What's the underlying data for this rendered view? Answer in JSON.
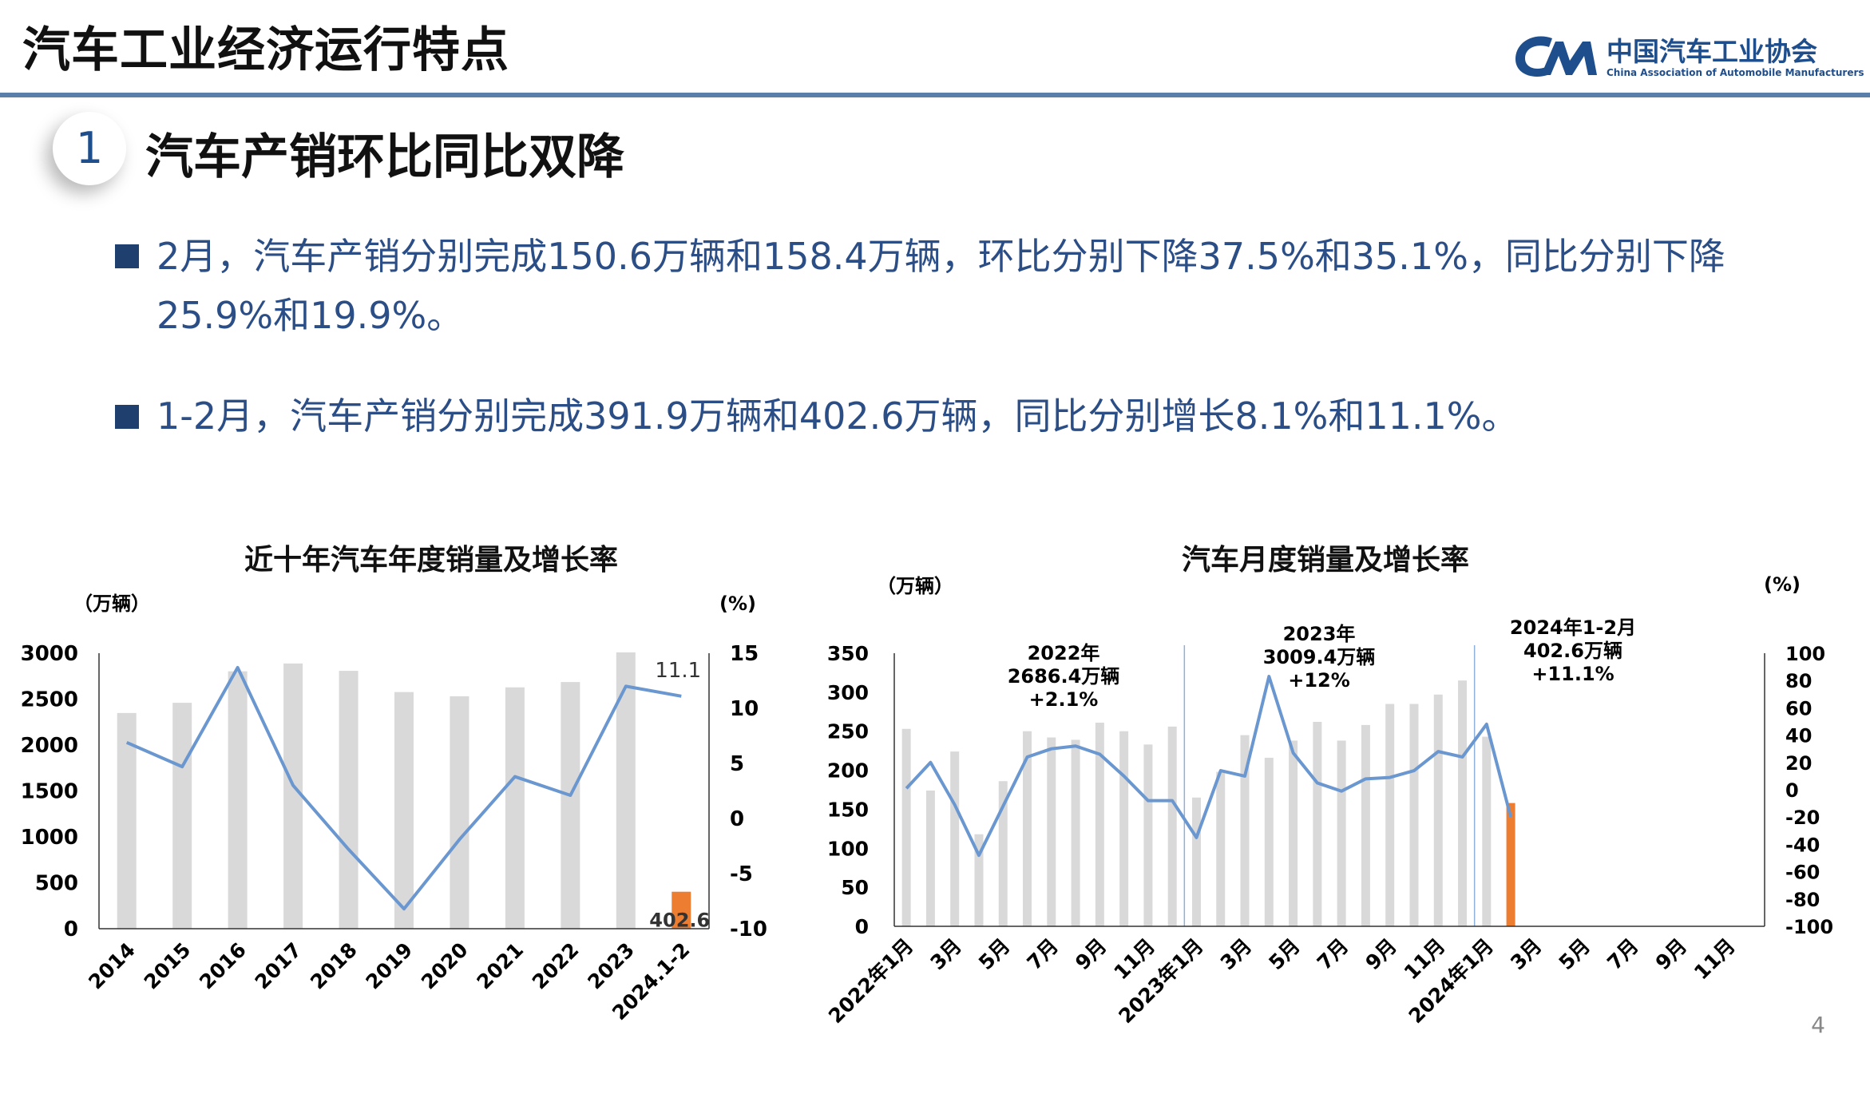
{
  "header": {
    "title": "汽车工业经济运行特点"
  },
  "logo": {
    "name_cn": "中国汽车工业协会",
    "name_en": "China Association of Automobile Manufacturers",
    "brand_color": "#1f4e8c"
  },
  "section": {
    "number": "1",
    "title": "汽车产销环比同比双降"
  },
  "bullets": [
    {
      "text": "2月，汽车产销分别完成150.6万辆和158.4万辆，环比分别下降37.5%和35.1%，同比分别下降25.9%和19.9%。"
    },
    {
      "text": "1-2月，汽车产销分别完成391.9万辆和402.6万辆，同比分别增长8.1%和11.1%。"
    }
  ],
  "page_number": "4",
  "colors": {
    "bar": "#d9d9d9",
    "highlight_bar": "#ed7d31",
    "line": "#6a97cf",
    "bullet": "#1f3f6e",
    "text_blue": "#2b4e86"
  },
  "chart_data": [
    {
      "type": "bar",
      "title": "近十年汽车年度销量及增长率",
      "ylabel": "（万辆）",
      "y2label": "(%)",
      "ylim": [
        0,
        3000
      ],
      "y2lim": [
        -10,
        15
      ],
      "yticks": [
        "0",
        "500",
        "1000",
        "1500",
        "2000",
        "2500",
        "3000"
      ],
      "y2ticks": [
        "-10",
        "-5",
        "0",
        "5",
        "10",
        "15"
      ],
      "categories": [
        "2014",
        "2015",
        "2016",
        "2017",
        "2018",
        "2019",
        "2020",
        "2021",
        "2022",
        "2023",
        "2024.1-2"
      ],
      "bars": [
        2349,
        2460,
        2803,
        2888,
        2808,
        2577,
        2531,
        2628,
        2686,
        3009,
        402.6
      ],
      "highlight_index": 10,
      "growth": [
        6.9,
        4.7,
        13.7,
        3.0,
        -2.8,
        -8.2,
        -1.9,
        3.8,
        2.1,
        12.0,
        11.1
      ],
      "data_labels": {
        "last_bar": "402.6",
        "last_growth": "11.1"
      },
      "grid": false
    },
    {
      "type": "bar",
      "title": "汽车月度销量及增长率",
      "ylabel": "（万辆）",
      "y2label": "(%)",
      "ylim": [
        0,
        350
      ],
      "y2lim": [
        -100,
        100
      ],
      "yticks": [
        "0",
        "50",
        "100",
        "150",
        "200",
        "250",
        "300",
        "350"
      ],
      "y2ticks": [
        "-100",
        "-80",
        "-60",
        "-40",
        "-20",
        "0",
        "20",
        "40",
        "60",
        "80",
        "100"
      ],
      "tick_labels": [
        "2022年1月",
        "3月",
        "5月",
        "7月",
        "9月",
        "11月",
        "2023年1月",
        "3月",
        "5月",
        "7月",
        "9月",
        "11月",
        "2024年1月",
        "3月",
        "5月",
        "7月",
        "9月",
        "11月"
      ],
      "bars": [
        253,
        174,
        224,
        118,
        186,
        250,
        242,
        239,
        261,
        250,
        233,
        256,
        165,
        198,
        245,
        216,
        238,
        262,
        238,
        258,
        285,
        285,
        297,
        315,
        243,
        158
      ],
      "highlight_index": 25,
      "growth": [
        1,
        20,
        -11,
        -48,
        -12,
        24,
        30,
        32,
        26,
        10,
        -8,
        -8,
        -35,
        14,
        10,
        83,
        27,
        5,
        -1,
        8,
        9,
        14,
        28,
        24,
        48,
        -20
      ],
      "annotations": [
        {
          "lines": [
            "2022年",
            "2686.4万辆",
            "+2.1%"
          ]
        },
        {
          "lines": [
            "2023年",
            "3009.4万辆",
            "+12%"
          ]
        },
        {
          "lines": [
            "2024年1-2月",
            "402.6万辆",
            "+11.1%"
          ]
        }
      ],
      "grid": false
    }
  ]
}
